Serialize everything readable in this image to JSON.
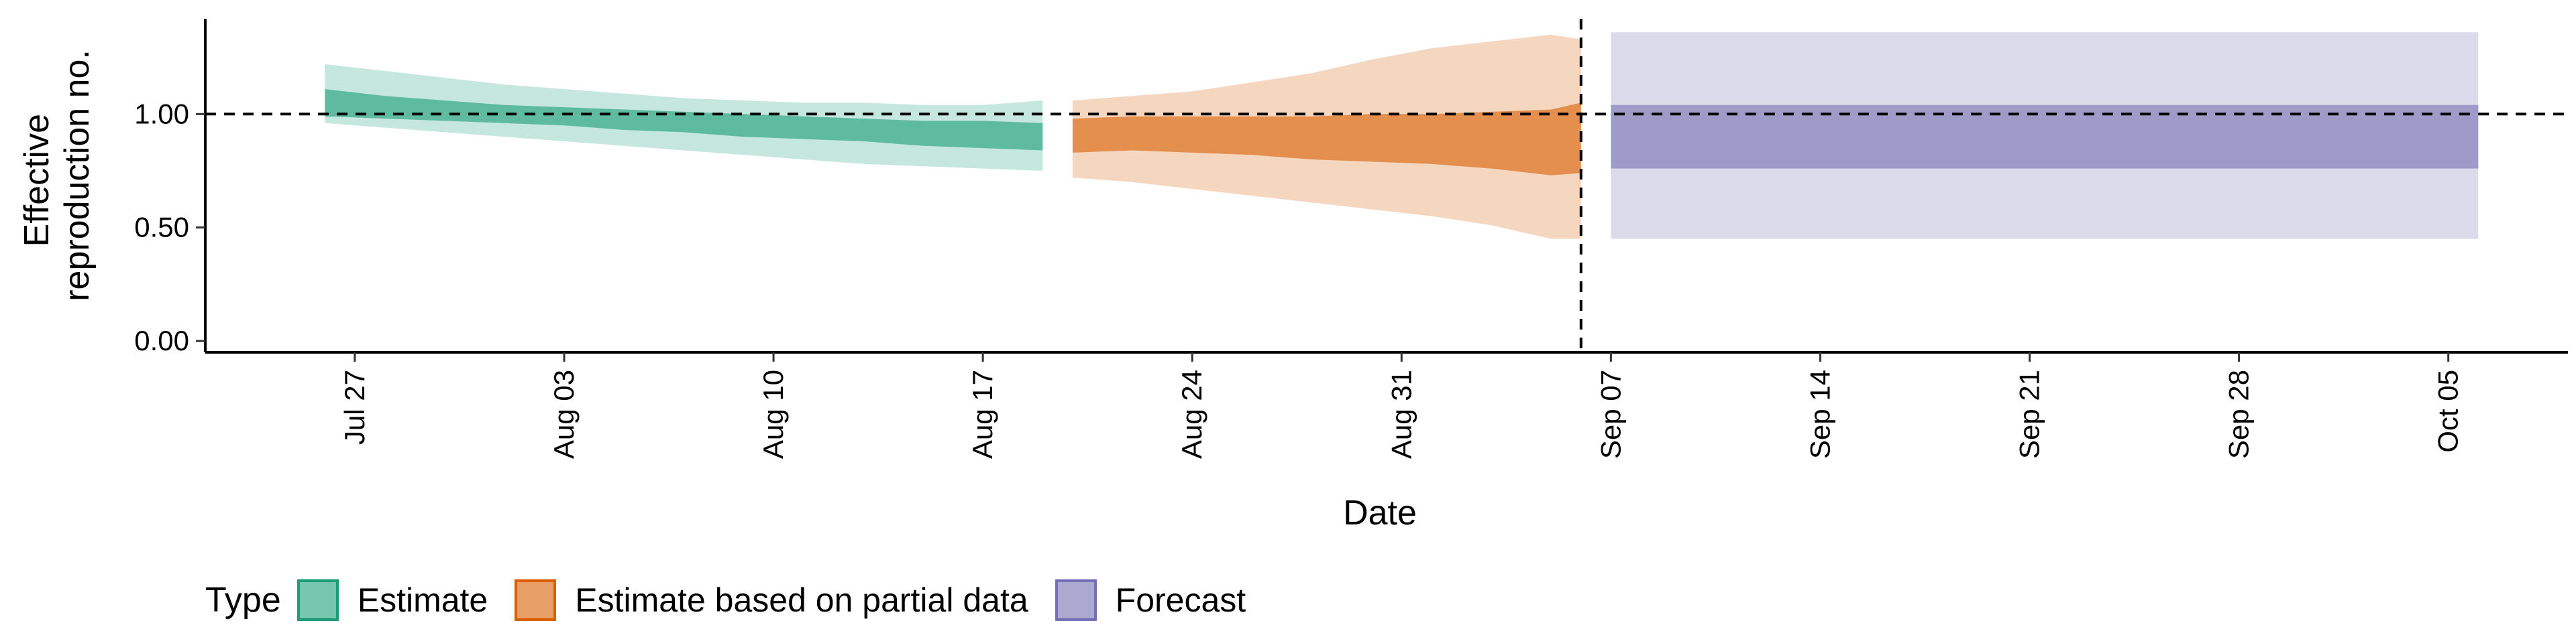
{
  "chart_data": {
    "type": "area",
    "title": "",
    "xlabel": "Date",
    "ylabel_lines": [
      "Effective",
      "reproduction no."
    ],
    "ylim": [
      -0.05,
      1.42
    ],
    "xlim": [
      "2020-07-22",
      "2020-10-09"
    ],
    "y_ticks": [
      0.0,
      0.5,
      1.0
    ],
    "y_tick_labels": [
      "0.00",
      "0.50",
      "1.00"
    ],
    "x_ticks": [
      "2020-07-27",
      "2020-08-03",
      "2020-08-10",
      "2020-08-17",
      "2020-08-24",
      "2020-08-31",
      "2020-09-07",
      "2020-09-14",
      "2020-09-21",
      "2020-09-28",
      "2020-10-05"
    ],
    "x_tick_labels": [
      "Jul 27",
      "Aug 03",
      "Aug 10",
      "Aug 17",
      "Aug 24",
      "Aug 31",
      "Sep 07",
      "Sep 14",
      "Sep 21",
      "Sep 28",
      "Oct 05"
    ],
    "hline_y": 1.0,
    "vline_x": "2020-09-06",
    "grid": false,
    "legend_position": "bottom-left",
    "legend_title": "Type",
    "series": [
      {
        "name": "Estimate",
        "fill": "#1b9e77",
        "border": "#1b9e77",
        "dates": [
          "2020-07-26",
          "2020-07-28",
          "2020-07-30",
          "2020-08-01",
          "2020-08-03",
          "2020-08-05",
          "2020-08-07",
          "2020-08-09",
          "2020-08-11",
          "2020-08-13",
          "2020-08-15",
          "2020-08-17",
          "2020-08-19"
        ],
        "inner_lower": [
          0.99,
          0.98,
          0.97,
          0.96,
          0.95,
          0.93,
          0.92,
          0.9,
          0.89,
          0.88,
          0.86,
          0.85,
          0.84
        ],
        "inner_upper": [
          1.11,
          1.08,
          1.06,
          1.04,
          1.03,
          1.02,
          1.01,
          1.0,
          0.99,
          0.98,
          0.97,
          0.97,
          0.96
        ],
        "outer_lower": [
          0.96,
          0.94,
          0.92,
          0.9,
          0.88,
          0.86,
          0.84,
          0.82,
          0.8,
          0.78,
          0.77,
          0.76,
          0.75
        ],
        "outer_upper": [
          1.22,
          1.19,
          1.16,
          1.13,
          1.11,
          1.09,
          1.07,
          1.06,
          1.05,
          1.05,
          1.04,
          1.04,
          1.06
        ]
      },
      {
        "name": "Estimate based on partial data",
        "fill": "#d95f02",
        "border": "#d95f02",
        "dates": [
          "2020-08-20",
          "2020-08-22",
          "2020-08-24",
          "2020-08-26",
          "2020-08-28",
          "2020-08-30",
          "2020-09-01",
          "2020-09-03",
          "2020-09-05",
          "2020-09-06"
        ],
        "inner_lower": [
          0.83,
          0.84,
          0.83,
          0.82,
          0.8,
          0.79,
          0.78,
          0.76,
          0.73,
          0.74
        ],
        "inner_upper": [
          0.98,
          0.99,
          0.99,
          0.99,
          0.99,
          1.0,
          1.0,
          1.01,
          1.02,
          1.05
        ],
        "outer_lower": [
          0.72,
          0.7,
          0.67,
          0.64,
          0.61,
          0.58,
          0.55,
          0.51,
          0.45,
          0.45
        ],
        "outer_upper": [
          1.06,
          1.08,
          1.1,
          1.14,
          1.18,
          1.24,
          1.29,
          1.32,
          1.35,
          1.33
        ]
      },
      {
        "name": "Forecast",
        "fill": "#7570b3",
        "border": "#7570b3",
        "dates": [
          "2020-09-07",
          "2020-10-06"
        ],
        "inner_lower": [
          0.76,
          0.76
        ],
        "inner_upper": [
          1.04,
          1.04
        ],
        "outer_lower": [
          0.45,
          0.45
        ],
        "outer_upper": [
          1.36,
          1.36
        ]
      }
    ]
  }
}
